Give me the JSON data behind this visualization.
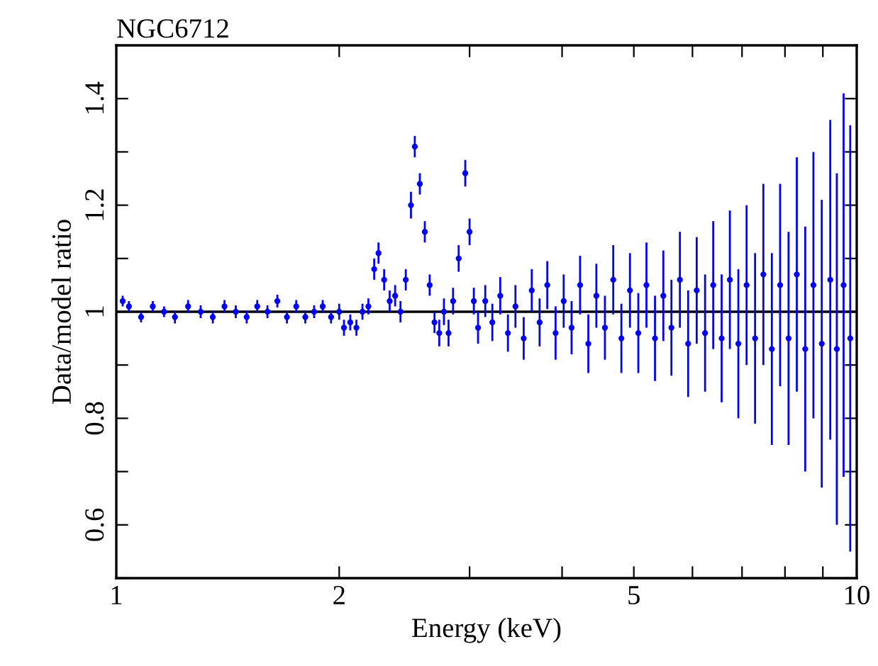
{
  "chart_data": {
    "type": "scatter",
    "title": "NGC6712",
    "xlabel": "Energy (keV)",
    "ylabel": "Data/model ratio",
    "log": "x",
    "marker": "circle",
    "grid": false,
    "xlim": [
      1,
      10
    ],
    "xticks": [
      1,
      2,
      {
        "value": 3,
        "label": null
      },
      {
        "value": 4,
        "label": null
      },
      5,
      {
        "value": 6,
        "label": null
      },
      {
        "value": 7,
        "label": null
      },
      {
        "value": 8,
        "label": null
      },
      {
        "value": 9,
        "label": null
      },
      10
    ],
    "ylim": [
      0.5,
      1.5
    ],
    "yticks": [
      {
        "value": 0.5,
        "label": null
      },
      0.6,
      {
        "value": 0.7,
        "label": null
      },
      0.8,
      {
        "value": 0.9,
        "label": null
      },
      1,
      {
        "value": 1.1,
        "label": null
      },
      1.2,
      {
        "value": 1.3,
        "label": null
      },
      1.4
    ],
    "ref_lines": [
      {
        "axis": "y",
        "value": 1,
        "color": "#000000"
      }
    ],
    "series": [
      {
        "color": "#0000ff",
        "x": [
          1.02,
          1.04,
          1.08,
          1.12,
          1.16,
          1.2,
          1.25,
          1.3,
          1.35,
          1.4,
          1.45,
          1.5,
          1.55,
          1.6,
          1.65,
          1.7,
          1.75,
          1.8,
          1.85,
          1.9,
          1.95,
          2.0,
          2.03,
          2.07,
          2.11,
          2.15,
          2.19,
          2.23,
          2.26,
          2.3,
          2.34,
          2.38,
          2.42,
          2.46,
          2.5,
          2.53,
          2.57,
          2.61,
          2.65,
          2.69,
          2.73,
          2.77,
          2.81,
          2.85,
          2.9,
          2.96,
          3.0,
          3.04,
          3.08,
          3.15,
          3.22,
          3.3,
          3.38,
          3.46,
          3.55,
          3.64,
          3.73,
          3.82,
          3.92,
          4.02,
          4.12,
          4.23,
          4.34,
          4.45,
          4.57,
          4.69,
          4.81,
          4.94,
          5.07,
          5.2,
          5.34,
          5.48,
          5.62,
          5.77,
          5.92,
          6.08,
          6.24,
          6.4,
          6.57,
          6.74,
          6.92,
          7.1,
          7.29,
          7.48,
          7.68,
          7.88,
          8.09,
          8.3,
          8.52,
          8.74,
          8.97,
          9.21,
          9.4,
          9.6,
          9.8
        ],
        "values": [
          1.02,
          1.01,
          0.99,
          1.01,
          1.0,
          0.99,
          1.01,
          1.0,
          0.99,
          1.01,
          1.0,
          0.99,
          1.01,
          1.0,
          1.02,
          0.99,
          1.01,
          0.99,
          1.0,
          1.01,
          0.99,
          1.0,
          0.97,
          0.98,
          0.97,
          1.0,
          1.01,
          1.08,
          1.11,
          1.06,
          1.02,
          1.03,
          1.0,
          1.06,
          1.2,
          1.31,
          1.24,
          1.15,
          1.05,
          0.98,
          0.96,
          1.0,
          0.96,
          1.02,
          1.1,
          1.26,
          1.15,
          1.02,
          0.97,
          1.02,
          0.98,
          1.03,
          0.96,
          1.01,
          0.95,
          1.04,
          0.98,
          1.05,
          0.96,
          1.02,
          0.97,
          1.05,
          0.94,
          1.03,
          0.97,
          1.06,
          0.95,
          1.04,
          0.96,
          1.05,
          0.95,
          1.03,
          0.97,
          1.06,
          0.94,
          1.04,
          0.96,
          1.05,
          0.95,
          1.06,
          0.94,
          1.05,
          0.95,
          1.07,
          0.93,
          1.05,
          0.95,
          1.07,
          0.93,
          1.05,
          0.94,
          1.06,
          0.93,
          1.05,
          0.95
        ],
        "errors": [
          0.01,
          0.01,
          0.01,
          0.01,
          0.01,
          0.012,
          0.012,
          0.012,
          0.012,
          0.012,
          0.012,
          0.012,
          0.012,
          0.012,
          0.012,
          0.012,
          0.012,
          0.012,
          0.012,
          0.012,
          0.012,
          0.015,
          0.015,
          0.015,
          0.015,
          0.015,
          0.015,
          0.02,
          0.02,
          0.02,
          0.02,
          0.02,
          0.02,
          0.02,
          0.025,
          0.02,
          0.02,
          0.02,
          0.02,
          0.02,
          0.025,
          0.025,
          0.025,
          0.025,
          0.025,
          0.025,
          0.025,
          0.025,
          0.03,
          0.03,
          0.035,
          0.035,
          0.035,
          0.04,
          0.04,
          0.04,
          0.045,
          0.045,
          0.05,
          0.05,
          0.05,
          0.055,
          0.055,
          0.06,
          0.06,
          0.065,
          0.065,
          0.07,
          0.075,
          0.08,
          0.08,
          0.085,
          0.09,
          0.09,
          0.1,
          0.1,
          0.11,
          0.12,
          0.12,
          0.13,
          0.14,
          0.15,
          0.16,
          0.17,
          0.18,
          0.19,
          0.2,
          0.22,
          0.23,
          0.25,
          0.27,
          0.3,
          0.33,
          0.36,
          0.4
        ]
      }
    ]
  }
}
